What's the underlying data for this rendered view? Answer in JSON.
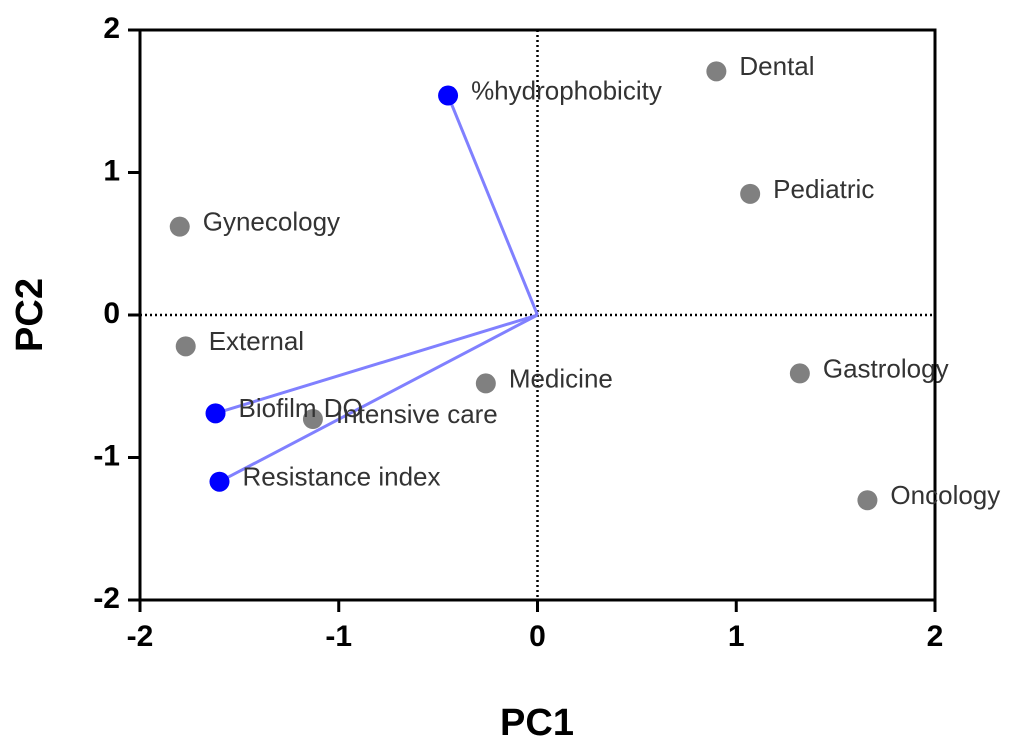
{
  "chart_data": {
    "type": "biplot",
    "xlabel": "PC1",
    "ylabel": "PC2",
    "xlim": [
      -2,
      2
    ],
    "ylim": [
      -2,
      2
    ],
    "xticks": [
      -2,
      -1,
      0,
      1,
      2
    ],
    "yticks": [
      -2,
      -1,
      0,
      1,
      2
    ],
    "zero_lines": true,
    "series": [
      {
        "color": "#808080",
        "arrows": false,
        "labels": [
          "Dental",
          "Pediatric",
          "Gynecology",
          "External",
          "Medicine",
          "Intensive care",
          "Gastrology",
          "Oncology"
        ],
        "x": [
          0.9,
          1.07,
          -1.8,
          -1.77,
          -0.26,
          -1.13,
          1.32,
          1.66
        ],
        "y": [
          1.71,
          0.85,
          0.62,
          -0.22,
          -0.48,
          -0.73,
          -0.41,
          -1.3
        ]
      },
      {
        "color": "#0000ff",
        "arrow_color": "#8080ff",
        "arrows": true,
        "labels": [
          "%hydrophobicity",
          "Biofilm DO",
          "Resistance index"
        ],
        "x": [
          -0.45,
          -1.62,
          -1.6
        ],
        "y": [
          1.54,
          -0.69,
          -1.17
        ]
      }
    ]
  }
}
